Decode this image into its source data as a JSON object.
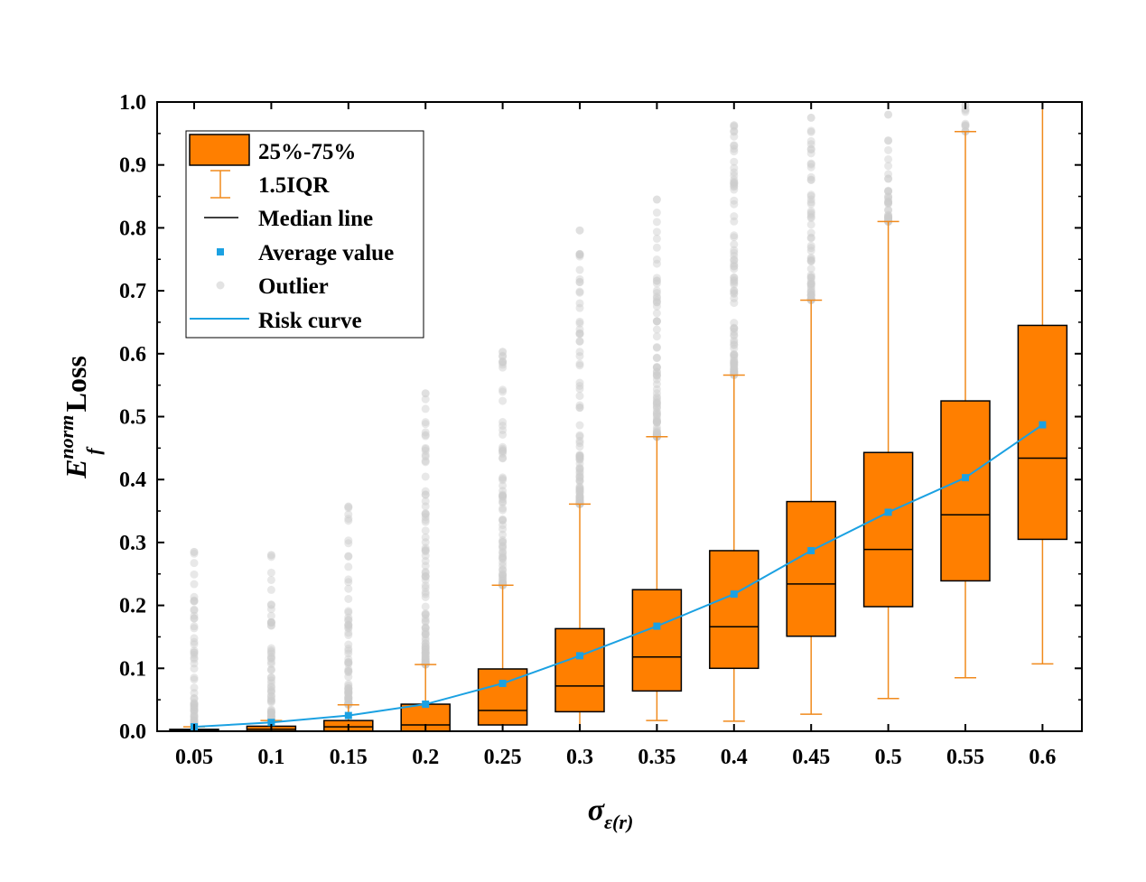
{
  "chart_data": {
    "type": "box",
    "x_tick_labels": [
      "0.05",
      "0.1",
      "0.15",
      "0.2",
      "0.25",
      "0.3",
      "0.35",
      "0.4",
      "0.45",
      "0.5",
      "0.55",
      "0.6"
    ],
    "y_tick_labels": [
      "0.0",
      "0.1",
      "0.2",
      "0.3",
      "0.4",
      "0.5",
      "0.6",
      "0.7",
      "0.8",
      "0.9",
      "1.0"
    ],
    "ylim": [
      0,
      1.0
    ],
    "x_axis_label": {
      "main": "σ",
      "sub": "ε(r)"
    },
    "y_axis_label": {
      "main": "E",
      "sup": "norm",
      "sub": "f",
      "suffix": " Loss"
    },
    "legend": {
      "position": "top-left",
      "items": [
        {
          "key": "box",
          "label": "25%-75%"
        },
        {
          "key": "whisker",
          "label": "1.5IQR"
        },
        {
          "key": "median",
          "label": "Median line"
        },
        {
          "key": "mean",
          "label": "Average value"
        },
        {
          "key": "outlier",
          "label": "Outlier"
        },
        {
          "key": "risk",
          "label": "Risk curve"
        }
      ]
    },
    "colors": {
      "box_fill": "#ff7f00",
      "whisker": "#f08a1c",
      "median": "#000000",
      "mean": "#1ba1e2",
      "outlier": "#cccccc"
    },
    "boxes": [
      {
        "x": 0.05,
        "q1": 0.0,
        "median": 0.001,
        "q3": 0.003,
        "whisker_low": 0.0,
        "whisker_high": 0.007,
        "mean": 0.007,
        "outlier_max": 0.285
      },
      {
        "x": 0.1,
        "q1": 0.0,
        "median": 0.003,
        "q3": 0.008,
        "whisker_low": 0.0,
        "whisker_high": 0.017,
        "mean": 0.014,
        "outlier_max": 0.28
      },
      {
        "x": 0.15,
        "q1": 0.0,
        "median": 0.007,
        "q3": 0.017,
        "whisker_low": 0.0,
        "whisker_high": 0.042,
        "mean": 0.025,
        "outlier_max": 0.357
      },
      {
        "x": 0.2,
        "q1": 0.0,
        "median": 0.01,
        "q3": 0.043,
        "whisker_low": 0.0,
        "whisker_high": 0.106,
        "mean": 0.043,
        "outlier_max": 0.537
      },
      {
        "x": 0.25,
        "q1": 0.01,
        "median": 0.033,
        "q3": 0.099,
        "whisker_low": 0.0,
        "whisker_high": 0.232,
        "mean": 0.076,
        "outlier_max": 0.603
      },
      {
        "x": 0.3,
        "q1": 0.031,
        "median": 0.072,
        "q3": 0.163,
        "whisker_low": 0.0,
        "whisker_high": 0.361,
        "mean": 0.12,
        "outlier_max": 0.796
      },
      {
        "x": 0.35,
        "q1": 0.064,
        "median": 0.118,
        "q3": 0.225,
        "whisker_low": 0.017,
        "whisker_high": 0.468,
        "mean": 0.167,
        "outlier_max": 0.845
      },
      {
        "x": 0.4,
        "q1": 0.1,
        "median": 0.166,
        "q3": 0.287,
        "whisker_low": 0.016,
        "whisker_high": 0.566,
        "mean": 0.218,
        "outlier_max": 0.963
      },
      {
        "x": 0.45,
        "q1": 0.151,
        "median": 0.234,
        "q3": 0.365,
        "whisker_low": 0.027,
        "whisker_high": 0.685,
        "mean": 0.287,
        "outlier_max": 0.975
      },
      {
        "x": 0.5,
        "q1": 0.198,
        "median": 0.289,
        "q3": 0.443,
        "whisker_low": 0.052,
        "whisker_high": 0.81,
        "mean": 0.348,
        "outlier_max": 0.98
      },
      {
        "x": 0.55,
        "q1": 0.239,
        "median": 0.344,
        "q3": 0.525,
        "whisker_low": 0.085,
        "whisker_high": 0.953,
        "mean": 0.403,
        "outlier_max": 0.995
      },
      {
        "x": 0.6,
        "q1": 0.305,
        "median": 0.434,
        "q3": 0.645,
        "whisker_low": 0.107,
        "whisker_high": 1.0,
        "mean": 0.487,
        "outlier_max": null
      }
    ]
  }
}
